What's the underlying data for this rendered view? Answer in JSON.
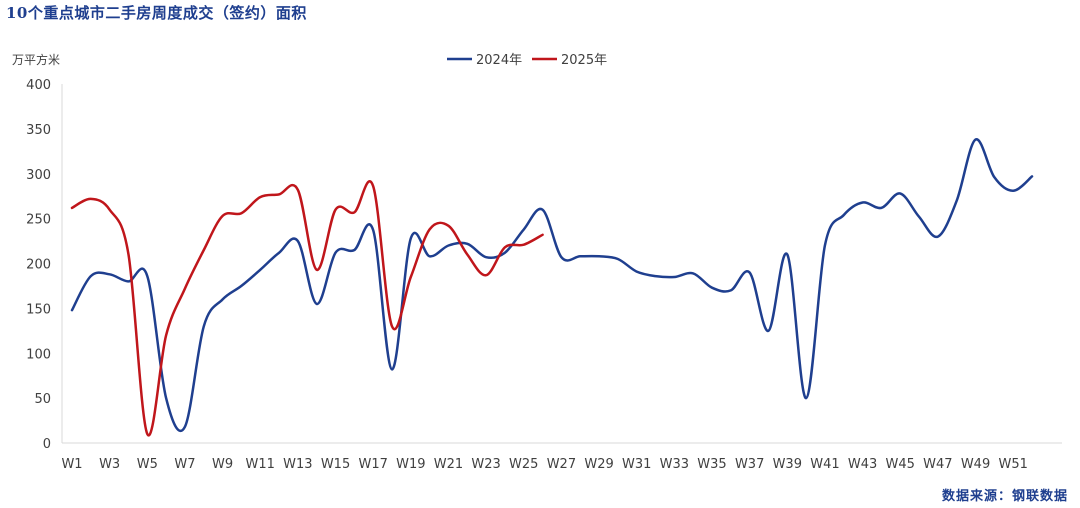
{
  "title": "10个重点城市二手房周度成交（签约）面积",
  "source": "数据来源：钢联数据",
  "chart_data": {
    "type": "line",
    "ylabel": "万平方米",
    "ylim": [
      0,
      400
    ],
    "yticks": [
      0,
      50,
      100,
      150,
      200,
      250,
      300,
      350,
      400
    ],
    "xticks": [
      "W1",
      "W3",
      "W5",
      "W7",
      "W9",
      "W11",
      "W13",
      "W15",
      "W17",
      "W19",
      "W21",
      "W23",
      "W25",
      "W27",
      "W29",
      "W31",
      "W33",
      "W35",
      "W37",
      "W39",
      "W41",
      "W43",
      "W45",
      "W47",
      "W49",
      "W51"
    ],
    "weeks": 52,
    "series": [
      {
        "name": "2024年",
        "color": "#1f3f8f",
        "values": [
          148,
          186,
          188,
          180,
          186,
          50,
          18,
          130,
          160,
          175,
          193,
          212,
          225,
          155,
          212,
          215,
          237,
          82,
          228,
          208,
          220,
          222,
          207,
          212,
          238,
          260,
          207,
          208,
          208,
          205,
          191,
          186,
          185,
          189,
          173,
          170,
          190,
          125,
          210,
          50,
          220,
          254,
          268,
          262,
          278,
          252,
          230,
          270,
          338,
          296,
          281,
          297
        ]
      },
      {
        "name": "2025年",
        "color": "#c0161b",
        "values": [
          262,
          272,
          260,
          210,
          10,
          120,
          172,
          215,
          253,
          256,
          274,
          277,
          282,
          193,
          260,
          257,
          286,
          130,
          185,
          238,
          242,
          210,
          187,
          218,
          221,
          232
        ]
      }
    ]
  }
}
